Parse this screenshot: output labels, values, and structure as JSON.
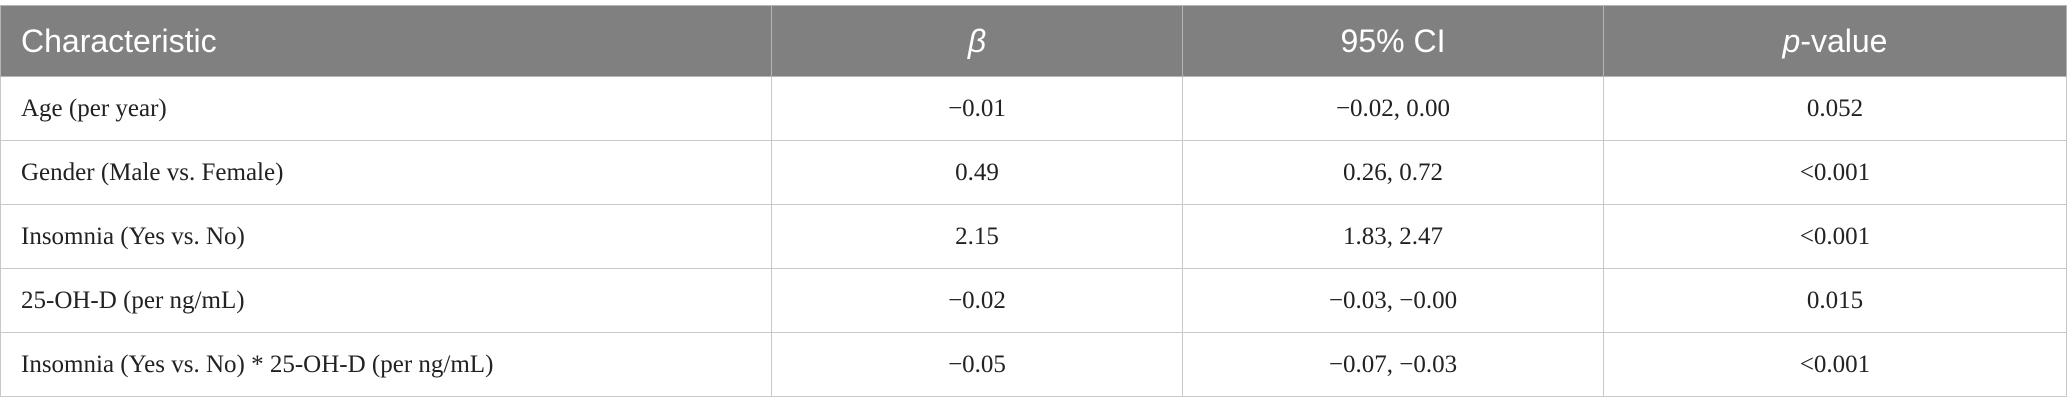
{
  "table": {
    "header": [
      "Characteristic",
      "β",
      "95% CI",
      {
        "italic": "p",
        "rest": "-value"
      }
    ],
    "rows": [
      [
        "Age (per year)",
        "−0.01",
        "−0.02, 0.00",
        "0.052"
      ],
      [
        "Gender (Male vs. Female)",
        "0.49",
        "0.26, 0.72",
        "<0.001"
      ],
      [
        "Insomnia (Yes vs. No)",
        "2.15",
        "1.83, 2.47",
        "<0.001"
      ],
      [
        "25-OH-D (per ng/mL)",
        "−0.02",
        "−0.03, −0.00",
        "0.015"
      ],
      [
        "Insomnia (Yes vs. No) * 25-OH-D (per ng/mL)",
        "−0.05",
        "−0.07, −0.03",
        "<0.001"
      ]
    ]
  }
}
